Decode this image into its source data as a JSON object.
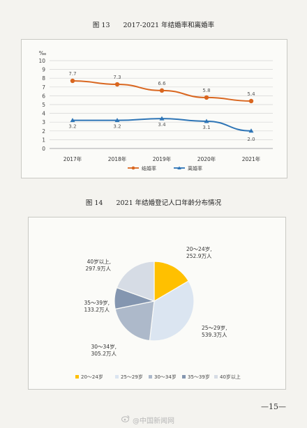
{
  "fig13": {
    "title": "图 13　　2017-2021 年结婚率和离婚率"
  },
  "fig14": {
    "title": "图 14　　2021 年结婚登记人口年龄分布情况"
  },
  "page_number": "—15—",
  "watermark": "@中国新闻网",
  "colors": {
    "marriage": "#d9661f",
    "divorce": "#2e75b6",
    "age_20_24": "#ffc000",
    "age_25_29": "#dbe5f1",
    "age_30_34": "#adb9ca",
    "age_35_39": "#8496b0",
    "age_40plus": "#d6dce5"
  },
  "chart_data": [
    {
      "type": "line",
      "unit_label": "‰",
      "x": [
        "2017年",
        "2018年",
        "2019年",
        "2020年",
        "2021年"
      ],
      "ylim": [
        0,
        10
      ],
      "yticks": [
        0,
        1,
        2,
        3,
        4,
        5,
        6,
        7,
        8,
        9,
        10
      ],
      "grid": true,
      "legend_position": "bottom",
      "series": [
        {
          "name": "结婚率",
          "values": [
            7.7,
            7.3,
            6.6,
            5.8,
            5.4
          ],
          "labels": [
            "7.7",
            "7.3",
            "6.6",
            "5.8",
            "5.4"
          ]
        },
        {
          "name": "离婚率",
          "values": [
            3.2,
            3.2,
            3.4,
            3.1,
            2.0
          ],
          "labels": [
            "3.2",
            "3.2",
            "3.4",
            "3.1",
            "2.0"
          ]
        }
      ]
    },
    {
      "type": "pie",
      "legend_position": "bottom",
      "slices": [
        {
          "name": "20～24岁",
          "value": 252.9,
          "label_name": "20～24岁,",
          "label_value": "252.9万人"
        },
        {
          "name": "25～29岁",
          "value": 539.3,
          "label_name": "25～29岁,",
          "label_value": "539.3万人"
        },
        {
          "name": "30～34岁",
          "value": 305.2,
          "label_name": "30～34岁,",
          "label_value": "305.2万人"
        },
        {
          "name": "35～39岁",
          "value": 133.2,
          "label_name": "35～39岁,",
          "label_value": "133.2万人"
        },
        {
          "name": "40岁以上",
          "value": 297.9,
          "label_name": "40岁以上,",
          "label_value": "297.9万人"
        }
      ]
    }
  ]
}
